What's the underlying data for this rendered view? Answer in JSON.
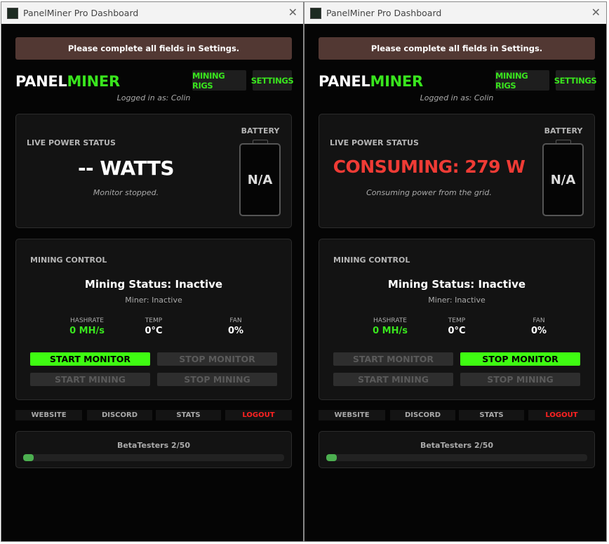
{
  "windows": [
    {
      "title": "PanelMiner Pro Dashboard",
      "banner": "Please complete all fields in Settings.",
      "logo": {
        "part1": "PANEL",
        "part2": "MINER"
      },
      "nav": {
        "rigs": "MINING RIGS",
        "settings": "SETTINGS"
      },
      "logged_in": "Logged in as: Colin",
      "power": {
        "label": "LIVE POWER STATUS",
        "value": "-- WATTS",
        "value_color": "#ffffff",
        "status": "Monitor stopped."
      },
      "battery": {
        "label": "BATTERY",
        "value": "N/A"
      },
      "mining": {
        "label": "MINING CONTROL",
        "status": "Mining Status: Inactive",
        "miner": "Miner: Inactive",
        "stats": [
          {
            "key": "HASHRATE",
            "value": "0 MH/s"
          },
          {
            "key": "TEMP",
            "value": "0°C"
          },
          {
            "key": "FAN",
            "value": "0%"
          }
        ],
        "buttons": [
          {
            "label": "START MONITOR",
            "enabled": true
          },
          {
            "label": "STOP MONITOR",
            "enabled": false
          },
          {
            "label": "START MINING",
            "enabled": false
          },
          {
            "label": "STOP MINING",
            "enabled": false
          }
        ]
      },
      "links": [
        "WEBSITE",
        "DISCORD",
        "STATS",
        "LOGOUT"
      ],
      "beta": {
        "label": "BetaTesters 2/50",
        "progress": 0.04
      }
    },
    {
      "title": "PanelMiner Pro Dashboard",
      "banner": "Please complete all fields in Settings.",
      "logo": {
        "part1": "PANEL",
        "part2": "MINER"
      },
      "nav": {
        "rigs": "MINING RIGS",
        "settings": "SETTINGS"
      },
      "logged_in": "Logged in as: Colin",
      "power": {
        "label": "LIVE POWER STATUS",
        "value": "CONSUMING: 279 W",
        "value_color": "#ef3b35",
        "status": "Consuming power from the grid."
      },
      "battery": {
        "label": "BATTERY",
        "value": "N/A"
      },
      "mining": {
        "label": "MINING CONTROL",
        "status": "Mining Status: Inactive",
        "miner": "Miner: Inactive",
        "stats": [
          {
            "key": "HASHRATE",
            "value": "0 MH/s"
          },
          {
            "key": "TEMP",
            "value": "0°C"
          },
          {
            "key": "FAN",
            "value": "0%"
          }
        ],
        "buttons": [
          {
            "label": "START MONITOR",
            "enabled": false
          },
          {
            "label": "STOP MONITOR",
            "enabled": true
          },
          {
            "label": "START MINING",
            "enabled": false
          },
          {
            "label": "STOP MINING",
            "enabled": false
          }
        ]
      },
      "links": [
        "WEBSITE",
        "DISCORD",
        "STATS",
        "LOGOUT"
      ],
      "beta": {
        "label": "BetaTesters 2/50",
        "progress": 0.04
      }
    }
  ],
  "colors": {
    "accent": "#39e51d",
    "button_active": "#3ffc12",
    "banner": "#523833",
    "logout": "#ff2222",
    "progress": "#4caf50"
  }
}
